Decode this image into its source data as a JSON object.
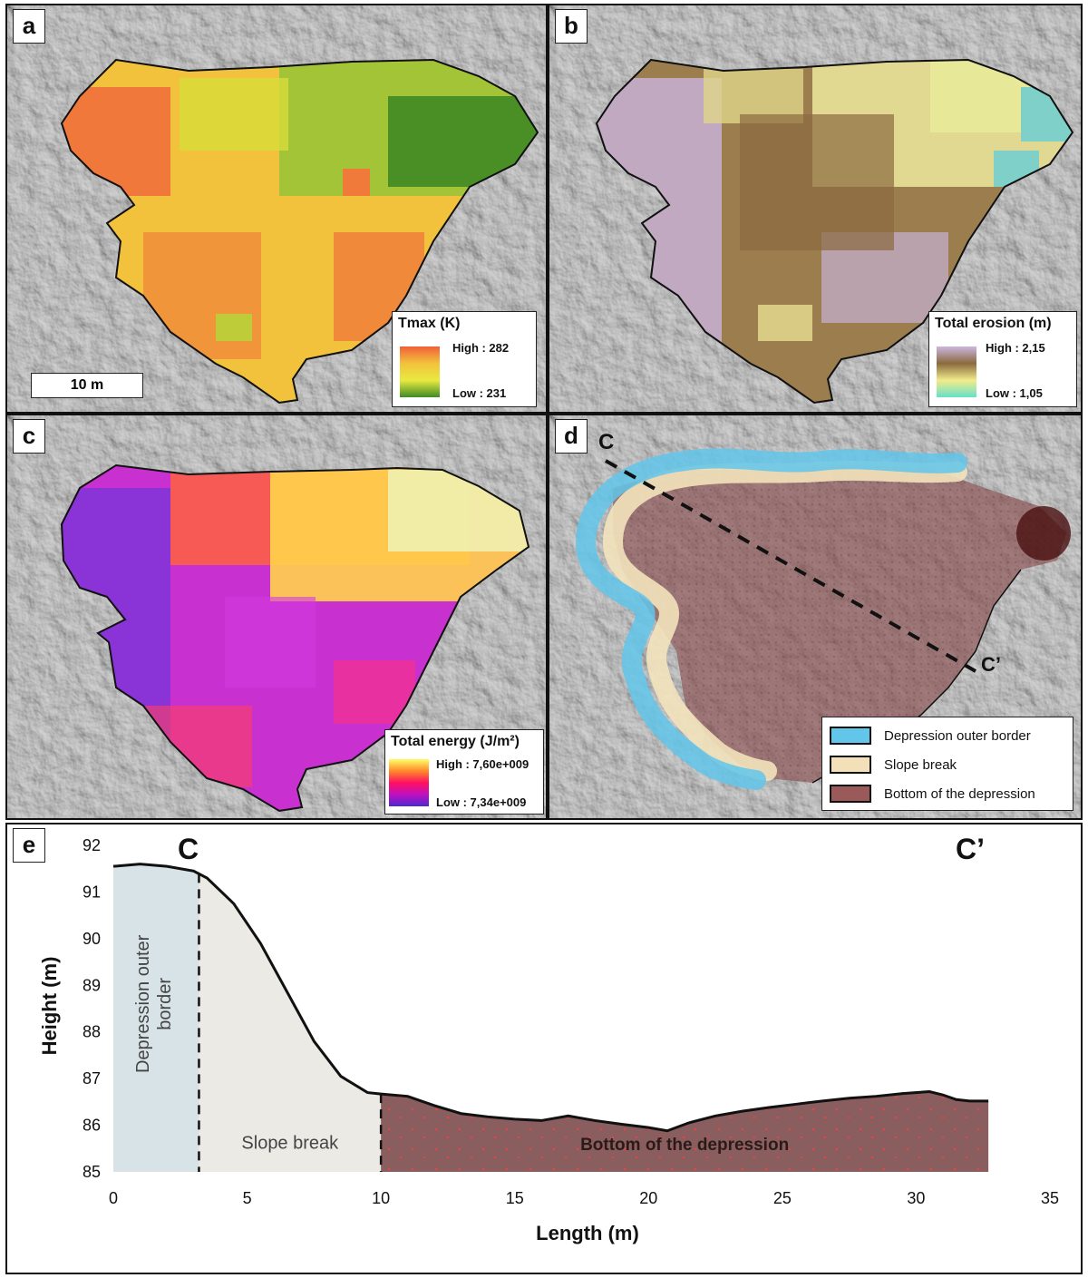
{
  "panels": {
    "a": {
      "label": "a",
      "legend_title": "Tmax (K)",
      "high_label": "High : 282",
      "low_label": "Low : 231",
      "scale_label": "10 m",
      "ramp_colors": [
        "#f0603a",
        "#f3c23c",
        "#e8ea40",
        "#3f8a25"
      ]
    },
    "b": {
      "label": "b",
      "legend_title": "Total erosion (m)",
      "high_label": "High : 2,15",
      "low_label": "Low : 1,05",
      "ramp_colors": [
        "#cdb6e0",
        "#8a6a3e",
        "#f2ec8a",
        "#66e0c8"
      ]
    },
    "c": {
      "label": "c",
      "legend_title": "Total energy (J/m²)",
      "high_label": "High : 7,60e+009",
      "low_label": "Low : 7,34e+009",
      "ramp_colors": [
        "#ffff66",
        "#ff8a2a",
        "#ff1060",
        "#c010c0",
        "#4a28d0"
      ]
    },
    "d": {
      "label": "d",
      "c_label": "C",
      "c_prime_label": "C’",
      "legend": [
        {
          "label": "Depression outer border",
          "color": "#62c6ea"
        },
        {
          "label": "Slope break",
          "color": "#f4e0b8"
        },
        {
          "label": "Bottom of the depression",
          "color": "#9a5a5a"
        }
      ]
    },
    "e": {
      "label": "e",
      "c_label": "C",
      "c_prime_label": "C’"
    }
  },
  "chart_data": {
    "type": "area",
    "xlabel": "Length (m)",
    "ylabel": "Height (m)",
    "xlim": [
      0,
      35
    ],
    "ylim": [
      85,
      92
    ],
    "x_ticks": [
      "0",
      "5",
      "10",
      "15",
      "20",
      "25",
      "30",
      "35"
    ],
    "y_ticks": [
      "85",
      "86",
      "87",
      "88",
      "89",
      "90",
      "91",
      "92"
    ],
    "profile": {
      "x": [
        0,
        1,
        2,
        3,
        3.5,
        4.5,
        5.5,
        6.5,
        7.5,
        8.5,
        9.5,
        10,
        11,
        12,
        13,
        14,
        15,
        16,
        17,
        18,
        19,
        20,
        20.7,
        21.5,
        22.5,
        23.5,
        24.5,
        25.5,
        26.5,
        27.5,
        28.5,
        29.5,
        30.5,
        31,
        31.5,
        32,
        32.7
      ],
      "y": [
        91.55,
        91.6,
        91.55,
        91.45,
        91.3,
        90.75,
        89.9,
        88.85,
        87.8,
        87.05,
        86.7,
        86.67,
        86.62,
        86.42,
        86.25,
        86.18,
        86.13,
        86.1,
        86.2,
        86.1,
        86.02,
        85.95,
        85.88,
        86.05,
        86.2,
        86.3,
        86.38,
        86.45,
        86.52,
        86.58,
        86.62,
        86.68,
        86.72,
        86.65,
        86.55,
        86.52,
        86.52
      ]
    },
    "regions": [
      {
        "name": "Depression outer border",
        "x_range": [
          0,
          3.2
        ],
        "color": "#d8e3e7"
      },
      {
        "name": "Slope break",
        "x_range": [
          3.2,
          10
        ],
        "color": "#ebeae5"
      },
      {
        "name": "Bottom of the depression",
        "x_range": [
          10,
          32.7
        ],
        "color": "#8a5e5e"
      }
    ],
    "boundaries": [
      3.2,
      10
    ]
  }
}
